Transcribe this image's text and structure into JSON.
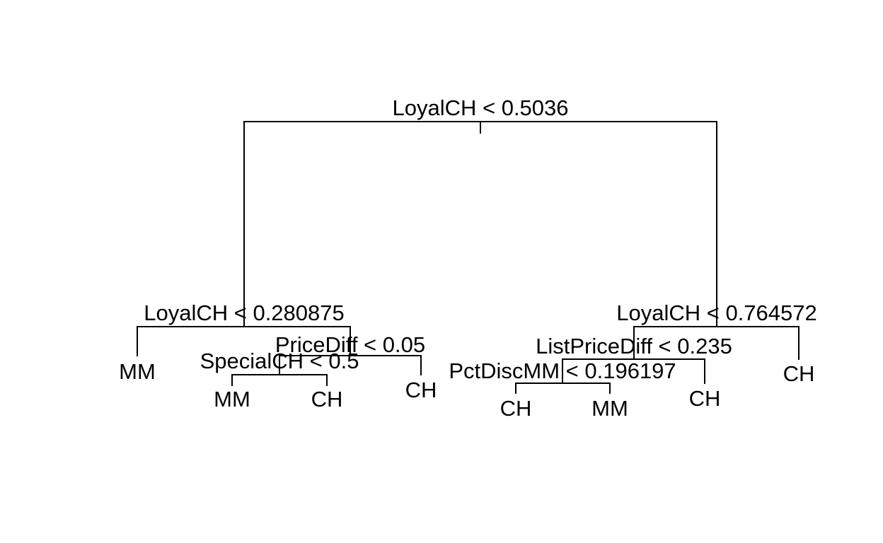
{
  "tree": {
    "nodes": [
      {
        "id": "root",
        "split": "LoyalCH < 0.5036"
      },
      {
        "id": "left",
        "split": "LoyalCH < 0.280875"
      },
      {
        "id": "left-right",
        "split": "PriceDiff < 0.05"
      },
      {
        "id": "left-right-left",
        "split": "SpecialCH < 0.5"
      },
      {
        "id": "right",
        "split": "LoyalCH < 0.764572"
      },
      {
        "id": "right-left",
        "split": "ListPriceDiff < 0.235"
      },
      {
        "id": "right-left-left",
        "split": "PctDiscMM < 0.196197"
      }
    ],
    "leaves": [
      {
        "id": "leaf-1",
        "label": "MM"
      },
      {
        "id": "leaf-2",
        "label": "MM"
      },
      {
        "id": "leaf-3",
        "label": "CH"
      },
      {
        "id": "leaf-4",
        "label": "CH"
      },
      {
        "id": "leaf-5",
        "label": "CH"
      },
      {
        "id": "leaf-6",
        "label": "MM"
      },
      {
        "id": "leaf-7",
        "label": "CH"
      },
      {
        "id": "leaf-8",
        "label": "CH"
      }
    ]
  }
}
